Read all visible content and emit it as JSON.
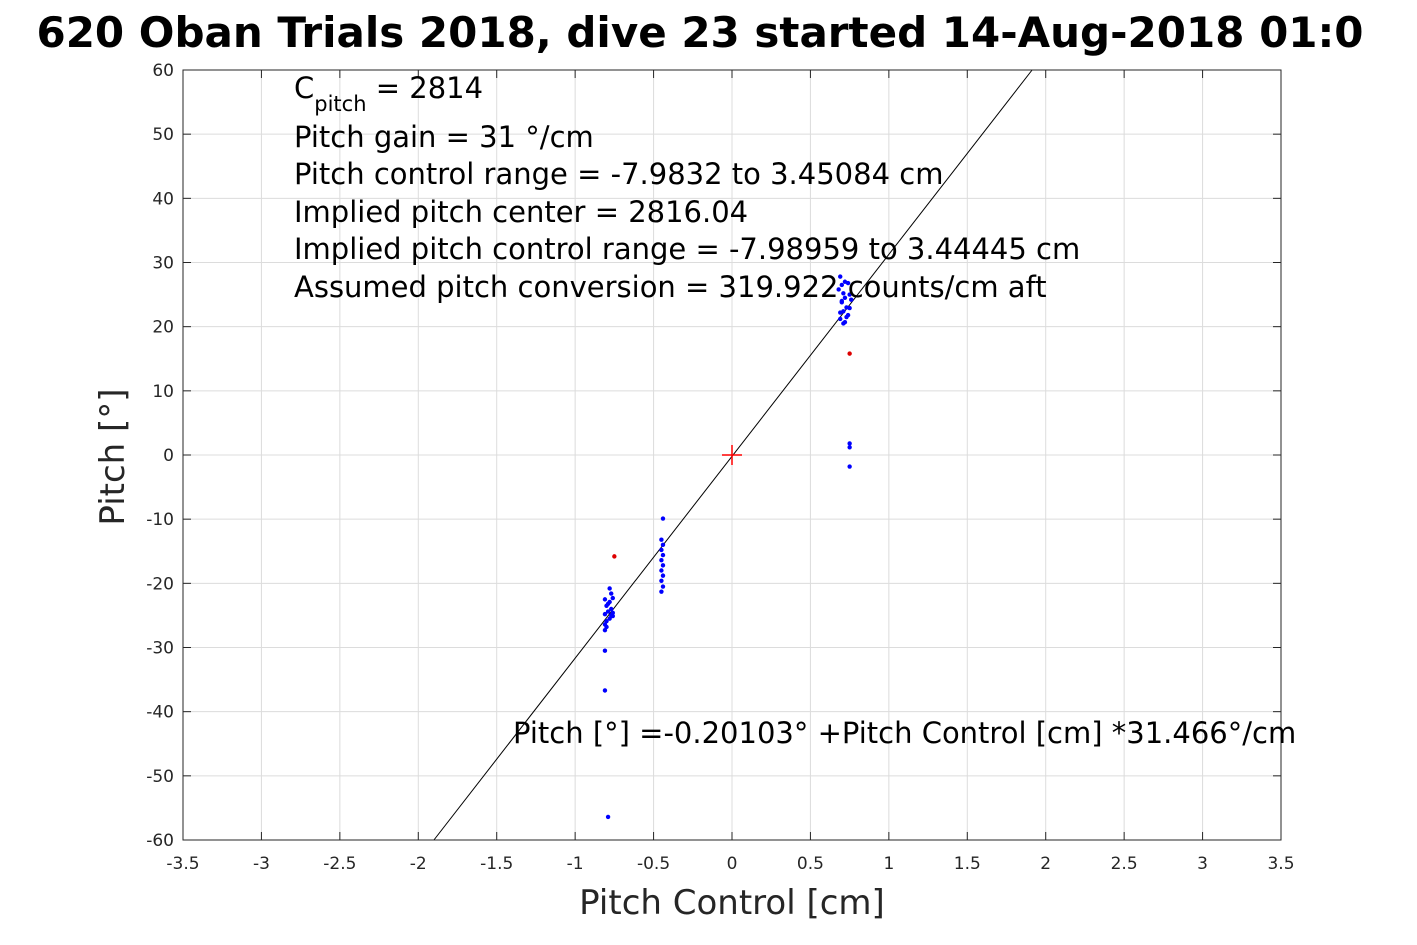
{
  "chart_data": {
    "type": "scatter",
    "title": "620 Oban Trials 2018, dive 23 started 14-Aug-2018 01:0",
    "xlabel": "Pitch Control [cm]",
    "ylabel": "Pitch [°]",
    "xlim": [
      -3.5,
      3.5
    ],
    "ylim": [
      -60,
      60
    ],
    "xticks": [
      -3.5,
      -3,
      -2.5,
      -2,
      -1.5,
      -1,
      -0.5,
      0,
      0.5,
      1,
      1.5,
      2,
      2.5,
      3,
      3.5
    ],
    "xtick_labels": [
      "-3.5",
      "-3",
      "-2.5",
      "-2",
      "-1.5",
      "-1",
      "-0.5",
      "0",
      "0.5",
      "1",
      "1.5",
      "2",
      "2.5",
      "3",
      "3.5"
    ],
    "yticks": [
      -60,
      -50,
      -40,
      -30,
      -20,
      -10,
      0,
      10,
      20,
      30,
      40,
      50,
      60
    ],
    "ytick_labels": [
      "-60",
      "-50",
      "-40",
      "-30",
      "-20",
      "-10",
      "0",
      "10",
      "20",
      "30",
      "40",
      "50",
      "60"
    ],
    "grid": true,
    "fit_line": {
      "intercept": -0.20103,
      "slope": 31.466,
      "color": "#000000"
    },
    "center_marker": {
      "x": 0,
      "y": 0,
      "color": "#ff0000",
      "marker": "plus"
    },
    "series": [
      {
        "name": "samples",
        "color": "#0000ff",
        "points": [
          [
            0.69,
            27.8
          ],
          [
            0.7,
            26.5
          ],
          [
            0.71,
            25.2
          ],
          [
            0.72,
            24.5
          ],
          [
            0.7,
            23.8
          ],
          [
            0.73,
            23.0
          ],
          [
            0.71,
            22.4
          ],
          [
            0.74,
            21.8
          ],
          [
            0.69,
            21.2
          ],
          [
            0.72,
            20.7
          ],
          [
            0.75,
            22.9
          ],
          [
            0.76,
            24.2
          ],
          [
            0.68,
            25.8
          ],
          [
            0.74,
            26.8
          ],
          [
            0.7,
            24.0
          ],
          [
            0.73,
            21.5
          ],
          [
            0.71,
            20.5
          ],
          [
            0.75,
            25.0
          ],
          [
            0.69,
            22.2
          ],
          [
            0.72,
            27.0
          ],
          [
            0.75,
            1.8
          ],
          [
            0.75,
            1.2
          ],
          [
            0.75,
            -1.8
          ],
          [
            -0.44,
            -9.9
          ],
          [
            -0.45,
            -13.2
          ],
          [
            -0.44,
            -14.0
          ],
          [
            -0.45,
            -14.8
          ],
          [
            -0.44,
            -15.6
          ],
          [
            -0.45,
            -16.4
          ],
          [
            -0.44,
            -17.2
          ],
          [
            -0.45,
            -18.0
          ],
          [
            -0.44,
            -18.8
          ],
          [
            -0.45,
            -19.6
          ],
          [
            -0.44,
            -20.5
          ],
          [
            -0.45,
            -21.3
          ],
          [
            -0.78,
            -20.8
          ],
          [
            -0.77,
            -21.6
          ],
          [
            -0.76,
            -22.3
          ],
          [
            -0.78,
            -22.9
          ],
          [
            -0.8,
            -23.5
          ],
          [
            -0.77,
            -24.0
          ],
          [
            -0.79,
            -24.4
          ],
          [
            -0.81,
            -24.8
          ],
          [
            -0.76,
            -25.1
          ],
          [
            -0.78,
            -25.5
          ],
          [
            -0.8,
            -25.9
          ],
          [
            -0.81,
            -26.4
          ],
          [
            -0.79,
            -23.2
          ],
          [
            -0.77,
            -25.0
          ],
          [
            -0.81,
            -27.3
          ],
          [
            -0.81,
            -22.5
          ],
          [
            -0.76,
            -24.6
          ],
          [
            -0.8,
            -26.8
          ],
          [
            -0.81,
            -30.5
          ],
          [
            -0.81,
            -36.7
          ],
          [
            -0.79,
            -56.4
          ]
        ]
      },
      {
        "name": "highlighted",
        "color": "#dd0000",
        "points": [
          [
            0.75,
            15.8
          ],
          [
            -0.75,
            -15.8
          ]
        ]
      }
    ],
    "annotations": {
      "cpitch_main": "C",
      "cpitch_sub": "pitch",
      "cpitch_value": " = 2814",
      "pitch_gain": "Pitch gain = 31 °/cm",
      "pitch_control_range": "Pitch control range = -7.9832 to 3.45084 cm",
      "implied_center": "Implied pitch center = 2816.04",
      "implied_range": "Implied pitch control range = -7.98959 to 3.44445 cm",
      "conversion": "Assumed pitch conversion = 319.922 counts/cm aft",
      "fit_equation": "Pitch [°] =-0.20103° +Pitch Control [cm] *31.466°/cm"
    }
  }
}
